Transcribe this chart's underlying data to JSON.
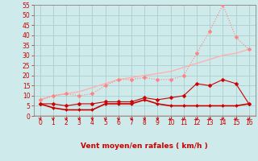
{
  "xlabel": "Vent moyen/en rafales ( km/h )",
  "background_color": "#ceeaea",
  "grid_color": "#aacfcf",
  "x": [
    0,
    1,
    2,
    3,
    4,
    5,
    6,
    7,
    8,
    9,
    10,
    11,
    12,
    13,
    14,
    15,
    16
  ],
  "line1_y": [
    6,
    4,
    3,
    3,
    3,
    6,
    6,
    6,
    8,
    6,
    5,
    5,
    5,
    5,
    5,
    5,
    6
  ],
  "line2_y": [
    6,
    6,
    5,
    6,
    6,
    7,
    7,
    7,
    9,
    8,
    9,
    10,
    16,
    15,
    18,
    16,
    6
  ],
  "line3_y": [
    8,
    10,
    11,
    10,
    11,
    15,
    18,
    18,
    19,
    18,
    18,
    20,
    31,
    42,
    55,
    39,
    33
  ],
  "line4_y": [
    8,
    10,
    11,
    12,
    14,
    16,
    18,
    19,
    20,
    21,
    22,
    24,
    26,
    28,
    30,
    31,
    33
  ],
  "ylim": [
    0,
    55
  ],
  "xlim": [
    -0.5,
    16.5
  ],
  "yticks": [
    0,
    5,
    10,
    15,
    20,
    25,
    30,
    35,
    40,
    45,
    50,
    55
  ],
  "xticks": [
    0,
    1,
    2,
    3,
    4,
    5,
    6,
    7,
    8,
    9,
    10,
    11,
    12,
    13,
    14,
    15,
    16
  ],
  "line1_color": "#cc0000",
  "line2_color": "#cc0000",
  "line3_color": "#ff8080",
  "line4_color": "#ffb0b0",
  "text_color": "#cc0000",
  "axis_color": "#888888"
}
